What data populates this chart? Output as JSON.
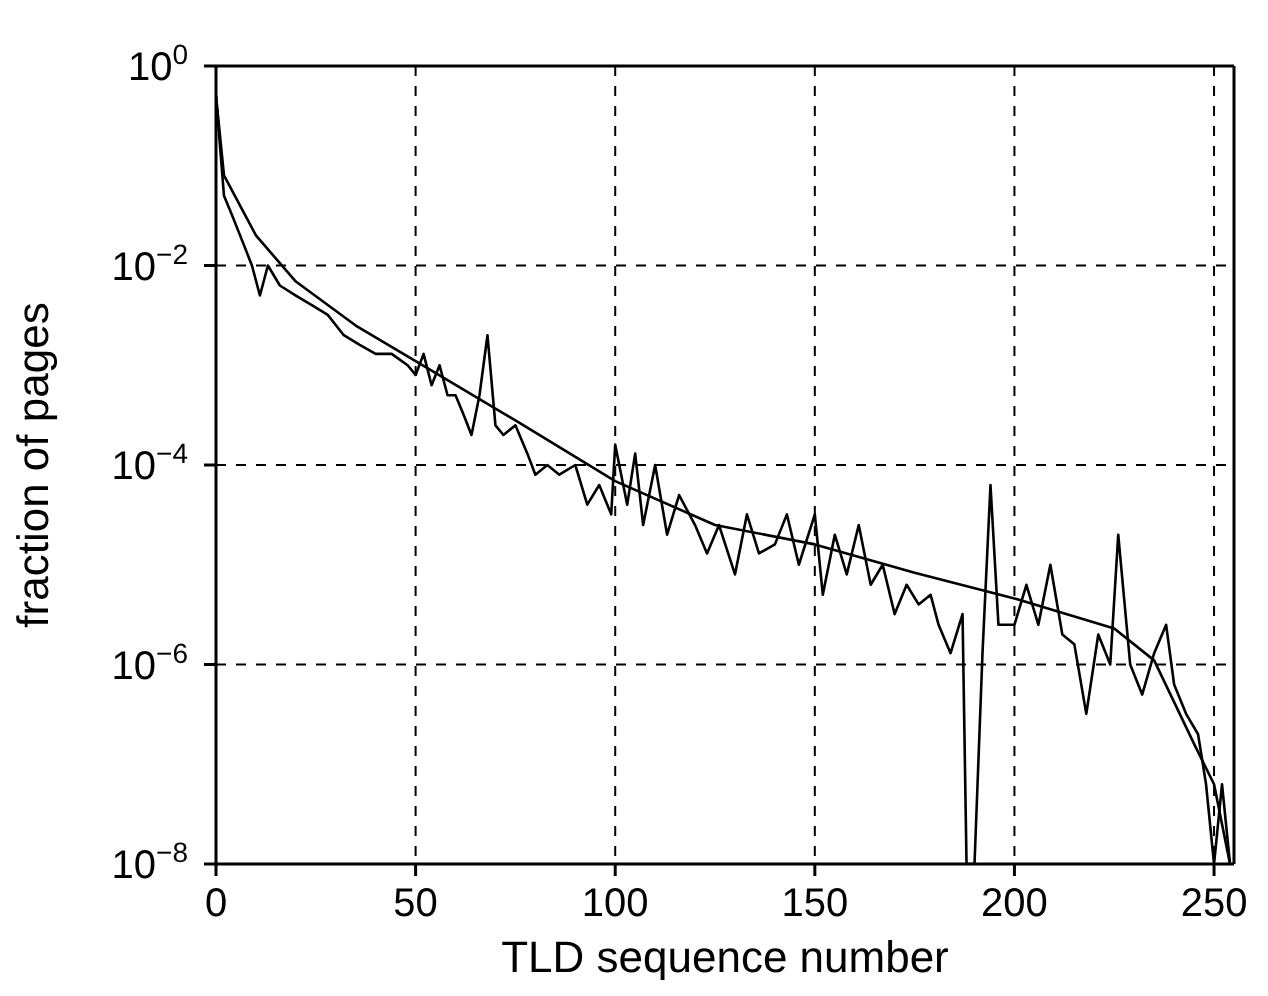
{
  "chart_data": {
    "type": "line",
    "xlabel": "TLD sequence number",
    "ylabel": "fraction of pages",
    "log": "y",
    "grid": true,
    "marker": "none",
    "line_style": "solid",
    "xlim": [
      0,
      255
    ],
    "xticks": [
      0,
      50,
      100,
      150,
      200,
      250
    ],
    "ylim": [
      1e-08,
      1
    ],
    "yticks": [
      {
        "value": 1,
        "label": "10$^{0}$"
      },
      {
        "value": 0.01,
        "label": "10$^{−2}$"
      },
      {
        "value": 0.0001,
        "label": "10$^{−4}$"
      },
      {
        "value": 1e-06,
        "label": "10$^{−6}$"
      },
      {
        "value": 1e-08,
        "label": "10$^{−8}$"
      }
    ],
    "series": [
      {
        "color": "#000000",
        "x": [
          0,
          2,
          4,
          7,
          9,
          11,
          13,
          16,
          20,
          24,
          28,
          32,
          36,
          40,
          44,
          48,
          50,
          52,
          54,
          56,
          58,
          60,
          62,
          64,
          66,
          68,
          70,
          72,
          75,
          78,
          80,
          83,
          86,
          90,
          93,
          96,
          99,
          100,
          103,
          105,
          107,
          110,
          113,
          116,
          120,
          123,
          126,
          130,
          133,
          136,
          140,
          143,
          146,
          150,
          152,
          155,
          158,
          161,
          164,
          167,
          170,
          173,
          176,
          179,
          181,
          184,
          187,
          188,
          190,
          192,
          194,
          196,
          200,
          203,
          206,
          209,
          212,
          215,
          218,
          221,
          224,
          226,
          229,
          232,
          235,
          238,
          240,
          243,
          246,
          248,
          250,
          252,
          254
        ],
        "values": [
          0.5,
          0.05,
          0.032,
          0.016,
          0.01,
          0.005,
          0.01,
          0.0063,
          0.005,
          0.004,
          0.0032,
          0.002,
          0.0016,
          0.0013,
          0.0013,
          0.001,
          0.0008,
          0.0013,
          0.00063,
          0.001,
          0.0005,
          0.0005,
          0.00032,
          0.0002,
          0.0005,
          0.002,
          0.00025,
          0.0002,
          0.00025,
          0.00013,
          8e-05,
          0.0001,
          8e-05,
          0.0001,
          4e-05,
          6.3e-05,
          3.2e-05,
          0.00016,
          4e-05,
          0.00013,
          2.5e-05,
          0.0001,
          2e-05,
          5e-05,
          2.5e-05,
          1.3e-05,
          2.5e-05,
          8e-06,
          3.2e-05,
          1.3e-05,
          1.6e-05,
          3.2e-05,
          1e-05,
          3.2e-05,
          5e-06,
          2e-05,
          8e-06,
          2.5e-05,
          6.3e-06,
          1e-05,
          3.2e-06,
          6.3e-06,
          4e-06,
          5e-06,
          2.5e-06,
          1.3e-06,
          3.2e-06,
          1e-08,
          1e-08,
          1.3e-06,
          6.3e-05,
          2.5e-06,
          2.5e-06,
          6.3e-06,
          2.5e-06,
          1e-05,
          2e-06,
          1.6e-06,
          3.2e-07,
          2e-06,
          1e-06,
          2e-05,
          1e-06,
          5e-07,
          1.3e-06,
          2.5e-06,
          6.3e-07,
          3.2e-07,
          2e-07,
          6.3e-08,
          1e-08,
          6.3e-08,
          1e-08
        ]
      },
      {
        "color": "#000000",
        "x": [
          0,
          2,
          10,
          20,
          35,
          50,
          75,
          100,
          125,
          150,
          175,
          200,
          225,
          235,
          245,
          250,
          254
        ],
        "values": [
          0.5,
          0.08,
          0.02,
          0.0069,
          0.0025,
          0.0011,
          0.00028,
          6.9e-05,
          2.5e-05,
          1.6e-05,
          8.3e-06,
          4.6e-06,
          2.3e-06,
          1.1e-06,
          1.6e-07,
          6.3e-08,
          1e-08
        ]
      }
    ]
  }
}
